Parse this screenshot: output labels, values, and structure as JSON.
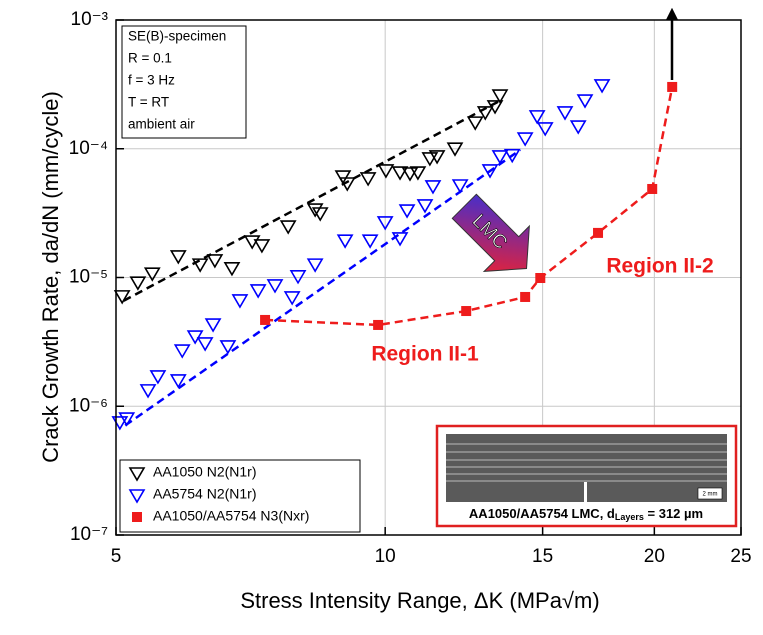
{
  "chart_data": {
    "type": "scatter",
    "x_label": "Stress Intensity Range, ΔK (MPa√m)",
    "y_label": "Crack Growth Rate, da/dN  (mm/cycle)",
    "xlim": [
      5,
      25
    ],
    "ylim": [
      1e-07,
      0.001
    ],
    "xticks": [
      5,
      10,
      15,
      20,
      25
    ],
    "yticks": [
      {
        "value": 0.001,
        "label": "10⁻³"
      },
      {
        "value": 0.0001,
        "label": "10⁻⁴"
      },
      {
        "value": 1e-05,
        "label": "10⁻⁵"
      },
      {
        "value": 1e-06,
        "label": "10⁻⁶"
      },
      {
        "value": 1e-07,
        "label": "10⁻⁷"
      }
    ],
    "xscale": "log",
    "yscale": "log",
    "grid": true,
    "legend": "lower left",
    "series": [
      {
        "name": "AA1050 N2(N1r)",
        "color": "#000000",
        "marker": "triangle-down-open",
        "x": [
          5.08,
          5.29,
          5.49,
          5.87,
          6.21,
          6.45,
          6.74,
          7.1,
          7.28,
          7.79,
          8.35,
          8.46,
          8.97,
          9.07,
          9.57,
          10.02,
          10.39,
          10.66,
          10.88,
          11.22,
          11.43,
          11.97,
          12.61,
          12.94,
          13.27,
          13.44
        ],
        "values": [
          7.2e-06,
          9.2e-06,
          1.08e-05,
          1.47e-05,
          1.27e-05,
          1.37e-05,
          1.19e-05,
          1.92e-05,
          1.79e-05,
          2.51e-05,
          3.4e-05,
          3.17e-05,
          6.14e-05,
          5.42e-05,
          5.93e-05,
          6.84e-05,
          6.59e-05,
          6.48e-05,
          6.59e-05,
          8.48e-05,
          8.79e-05,
          0.000101,
          0.000161,
          0.000193,
          0.000215,
          0.000261
        ],
        "fit": {
          "x": [
            5.1,
            13.5
          ],
          "y": [
            6.6e-06,
            0.00024
          ]
        }
      },
      {
        "name": "AA5754 N2(N1r)",
        "color": "#0000ff",
        "marker": "triangle-down-open",
        "x": [
          5.05,
          5.14,
          5.43,
          5.57,
          5.87,
          5.93,
          6.13,
          6.29,
          6.42,
          6.67,
          6.88,
          7.21,
          7.53,
          7.87,
          7.99,
          8.35,
          9.02,
          9.62,
          10.0,
          10.39,
          10.58,
          11.08,
          11.31,
          12.13,
          13.1,
          13.44,
          13.87,
          14.34,
          14.79,
          15.1,
          15.89,
          16.44,
          16.73,
          17.48
        ],
        "values": [
          7.55e-07,
          8.1e-07,
          1.34e-06,
          1.72e-06,
          1.6e-06,
          2.73e-06,
          3.51e-06,
          3.1e-06,
          4.35e-06,
          2.94e-06,
          6.69e-06,
          8e-06,
          8.75e-06,
          7.06e-06,
          1.03e-05,
          1.27e-05,
          1.95e-05,
          1.95e-05,
          2.7e-05,
          2.03e-05,
          3.34e-05,
          3.66e-05,
          5.14e-05,
          5.23e-05,
          6.84e-05,
          8.79e-05,
          9e-05,
          0.000121,
          0.00018,
          0.000145,
          0.000193,
          0.00015,
          0.000239,
          0.000313
        ],
        "fit": {
          "x": [
            5.12,
            14.16
          ],
          "y": [
            7.1e-07,
            9.8e-05
          ]
        }
      },
      {
        "name": "AA1050/AA5754 N3(Nxr)",
        "color": "#ee1c1c",
        "marker": "square-filled",
        "connect": true,
        "x": [
          7.34,
          9.82,
          12.32,
          14.34,
          14.91,
          17.3,
          19.89,
          20.94
        ],
        "values": [
          4.68e-06,
          4.28e-06,
          5.49e-06,
          7.06e-06,
          9.91e-06,
          2.22e-05,
          4.87e-05,
          0.000302
        ]
      }
    ],
    "annotations": {
      "conditions": [
        "SE(B)-specimen",
        "R = 0.1",
        "f = 3 Hz",
        "T = RT",
        "ambient air"
      ],
      "region1": "Region II-1",
      "region2": "Region II-2",
      "arrow_label": "LMC",
      "inset_label": {
        "main": "AA1050/AA5754 LMC, d",
        "sub": "Layers",
        "rest": " = 312 µm"
      },
      "scale_bar": "2 mm"
    }
  }
}
